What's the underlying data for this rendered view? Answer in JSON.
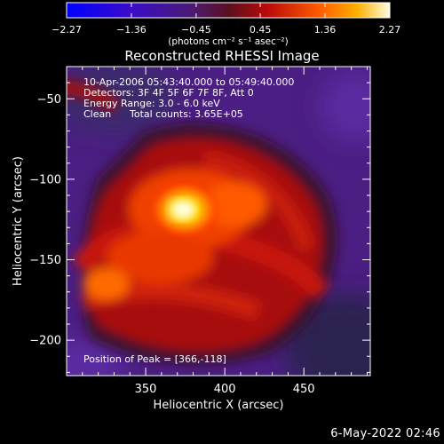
{
  "chart_data": {
    "type": "heatmap",
    "title": "Reconstructed RHESSI Image",
    "xlabel": "Heliocentric X (arcsec)",
    "ylabel": "Heliocentric Y (arcsec)",
    "xlim": [
      300,
      492
    ],
    "ylim": [
      -222,
      -30
    ],
    "x_ticks": [
      350,
      400,
      450
    ],
    "y_ticks": [
      -50,
      -100,
      -150,
      -200
    ],
    "colorbar": {
      "units_label": "(photons cm⁻² s⁻¹ asec⁻²)",
      "min": -2.27,
      "max": 2.27,
      "ticks": [
        -2.27,
        -1.36,
        -0.45,
        0.45,
        1.36,
        2.27
      ]
    },
    "annotations": [
      "10-Apr-2006 05:43:40.000 to 05:49:40.000",
      "Detectors: 3F 4F 5F 6F 7F 8F, Att 0",
      "Energy Range: 3.0 - 6.0 keV",
      "Clean",
      "Total counts: 3.65E+05"
    ],
    "peak": {
      "label": "Position of Peak = [366,-118]",
      "x": 366,
      "y": -118
    },
    "grid": false
  },
  "footer": {
    "timestamp": "6-May-2022 02:46"
  }
}
